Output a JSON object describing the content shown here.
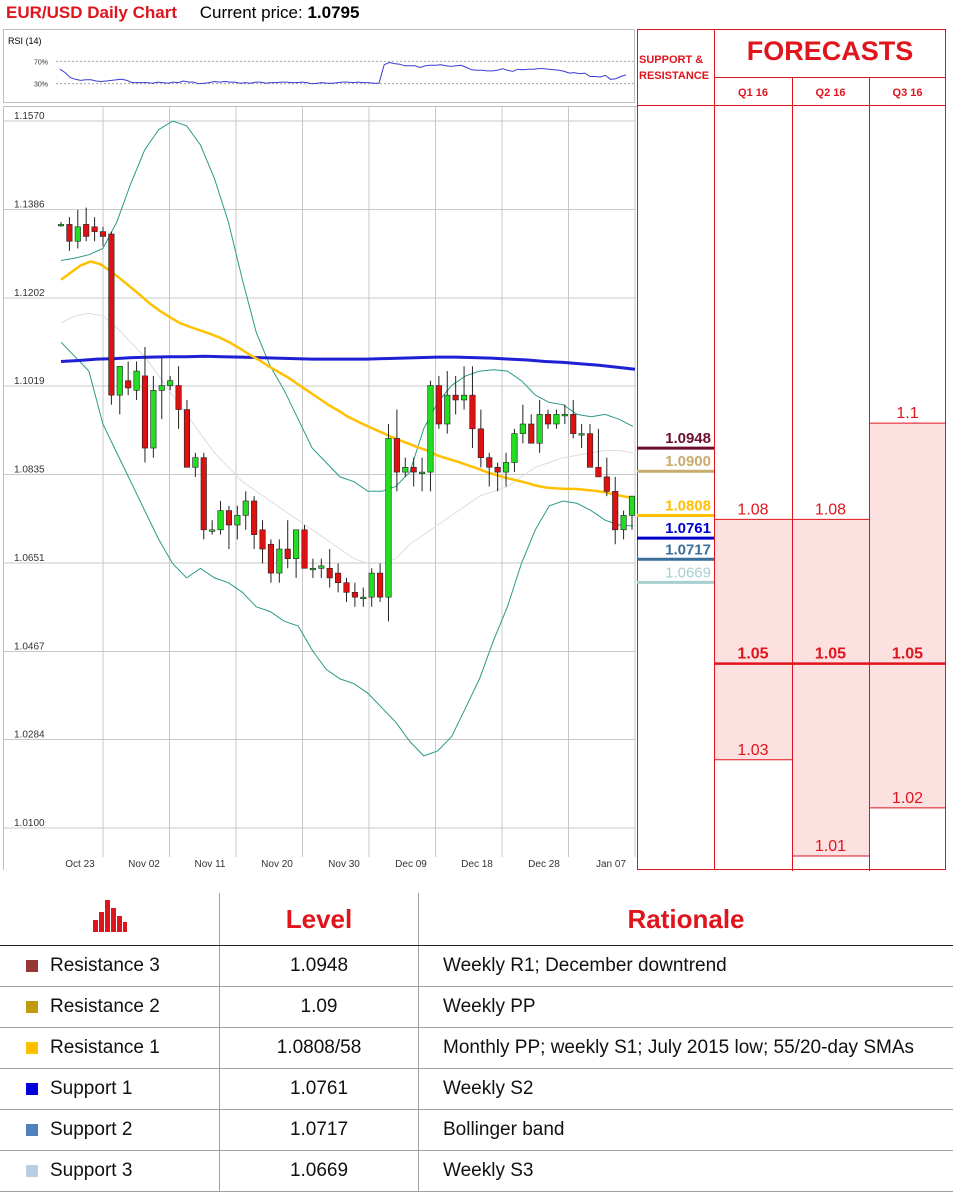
{
  "header": {
    "title": "EUR/USD Daily Chart",
    "price_label": "Current price:",
    "price_value": "1.0795"
  },
  "colors": {
    "accent_red": "#e0141d",
    "bull": "#22dd22",
    "bear": "#dd1111",
    "sma55": "#ffc000",
    "sma200": "#1f1fd6",
    "bollinger": "#2a9a8a",
    "sma20": "#dddddd",
    "rsi_line": "#3a3ad6",
    "forecast_fill": "#fde0e0",
    "icon_bars": "#e0141d"
  },
  "chart_data": [
    {
      "type": "line",
      "title": "RSI (14)",
      "y_ticks": [
        "70%",
        "30%"
      ],
      "ylim": [
        0,
        100
      ],
      "series": [
        {
          "values": [
            55,
            49,
            40,
            37,
            35,
            36,
            36,
            34,
            33,
            34,
            35,
            36,
            37,
            35,
            31,
            31,
            31,
            31,
            30,
            32,
            31,
            30,
            32,
            31,
            34,
            32,
            32,
            29,
            30,
            31,
            33,
            32,
            33,
            32,
            32,
            30,
            31,
            30,
            32,
            32,
            30,
            31,
            31,
            32,
            32,
            31,
            31,
            32,
            31,
            29,
            30,
            31,
            30,
            30,
            31,
            32,
            32,
            31,
            32,
            31,
            31,
            30,
            30,
            63,
            67,
            65,
            64,
            61,
            61,
            61,
            58,
            61,
            62,
            62,
            63,
            61,
            60,
            61,
            62,
            58,
            54,
            53,
            53,
            52,
            52,
            53,
            56,
            53,
            51,
            55,
            54,
            55,
            55,
            56,
            56,
            55,
            54,
            53,
            51,
            48,
            49,
            47,
            48,
            42,
            42,
            41,
            44,
            37,
            38,
            42,
            45
          ]
        }
      ]
    },
    {
      "type": "candlestick",
      "x_ticks": [
        "Oct 23",
        "Nov 02",
        "Nov 11",
        "Nov 20",
        "Nov 30",
        "Dec 09",
        "Dec 18",
        "Dec 28",
        "Jan 07"
      ],
      "y_ticks": [
        "1.1570",
        "1.1386",
        "1.1202",
        "1.1019",
        "1.0835",
        "1.0651",
        "1.0467",
        "1.0284",
        "1.0100"
      ],
      "ylim": [
        1.01,
        1.157
      ],
      "candles": [
        [
          1.1355,
          1.136,
          1.135,
          1.1355
        ],
        [
          1.1355,
          1.137,
          1.13,
          1.132
        ],
        [
          1.132,
          1.1385,
          1.1305,
          1.135
        ],
        [
          1.1355,
          1.139,
          1.132,
          1.133
        ],
        [
          1.135,
          1.137,
          1.132,
          1.134
        ],
        [
          1.134,
          1.135,
          1.131,
          1.133
        ],
        [
          1.1335,
          1.134,
          1.098,
          1.1
        ],
        [
          1.1,
          1.106,
          1.096,
          1.106
        ],
        [
          1.103,
          1.107,
          1.1,
          1.1015
        ],
        [
          1.101,
          1.107,
          1.099,
          1.105
        ],
        [
          1.104,
          1.11,
          1.086,
          1.089
        ],
        [
          1.089,
          1.104,
          1.087,
          1.101
        ],
        [
          1.101,
          1.108,
          1.095,
          1.102
        ],
        [
          1.102,
          1.104,
          1.101,
          1.103
        ],
        [
          1.102,
          1.106,
          1.093,
          1.097
        ],
        [
          1.097,
          1.099,
          1.085,
          1.085
        ],
        [
          1.085,
          1.088,
          1.083,
          1.087
        ],
        [
          1.087,
          1.088,
          1.07,
          1.072
        ],
        [
          1.072,
          1.074,
          1.071,
          1.072
        ],
        [
          1.072,
          1.078,
          1.071,
          1.076
        ],
        [
          1.076,
          1.077,
          1.068,
          1.073
        ],
        [
          1.073,
          1.077,
          1.07,
          1.075
        ],
        [
          1.075,
          1.08,
          1.072,
          1.078
        ],
        [
          1.078,
          1.079,
          1.068,
          1.071
        ],
        [
          1.072,
          1.074,
          1.065,
          1.068
        ],
        [
          1.069,
          1.07,
          1.061,
          1.063
        ],
        [
          1.063,
          1.07,
          1.061,
          1.068
        ],
        [
          1.068,
          1.074,
          1.064,
          1.066
        ],
        [
          1.066,
          1.072,
          1.062,
          1.072
        ],
        [
          1.072,
          1.073,
          1.064,
          1.064
        ],
        [
          1.064,
          1.066,
          1.062,
          1.064
        ],
        [
          1.064,
          1.066,
          1.062,
          1.0645
        ],
        [
          1.064,
          1.068,
          1.06,
          1.062
        ],
        [
          1.063,
          1.065,
          1.059,
          1.061
        ],
        [
          1.061,
          1.062,
          1.057,
          1.059
        ],
        [
          1.059,
          1.061,
          1.056,
          1.058
        ],
        [
          1.058,
          1.06,
          1.056,
          1.058
        ],
        [
          1.058,
          1.064,
          1.056,
          1.063
        ],
        [
          1.063,
          1.065,
          1.057,
          1.058
        ],
        [
          1.058,
          1.094,
          1.053,
          1.091
        ],
        [
          1.091,
          1.097,
          1.08,
          1.084
        ],
        [
          1.084,
          1.087,
          1.083,
          1.085
        ],
        [
          1.085,
          1.087,
          1.081,
          1.084
        ],
        [
          1.084,
          1.087,
          1.08,
          1.084
        ],
        [
          1.084,
          1.103,
          1.08,
          1.102
        ],
        [
          1.102,
          1.104,
          1.093,
          1.094
        ],
        [
          1.094,
          1.105,
          1.092,
          1.1
        ],
        [
          1.1,
          1.104,
          1.096,
          1.099
        ],
        [
          1.099,
          1.106,
          1.097,
          1.1
        ],
        [
          1.1,
          1.106,
          1.089,
          1.093
        ],
        [
          1.093,
          1.097,
          1.085,
          1.087
        ],
        [
          1.087,
          1.088,
          1.081,
          1.085
        ],
        [
          1.085,
          1.086,
          1.08,
          1.084
        ],
        [
          1.084,
          1.088,
          1.081,
          1.086
        ],
        [
          1.086,
          1.093,
          1.084,
          1.092
        ],
        [
          1.092,
          1.098,
          1.09,
          1.094
        ],
        [
          1.094,
          1.096,
          1.09,
          1.09
        ],
        [
          1.09,
          1.099,
          1.088,
          1.096
        ],
        [
          1.096,
          1.097,
          1.093,
          1.094
        ],
        [
          1.094,
          1.097,
          1.093,
          1.096
        ],
        [
          1.096,
          1.098,
          1.094,
          1.096
        ],
        [
          1.096,
          1.099,
          1.091,
          1.092
        ],
        [
          1.092,
          1.094,
          1.089,
          1.092
        ],
        [
          1.092,
          1.094,
          1.085,
          1.085
        ],
        [
          1.085,
          1.093,
          1.083,
          1.083
        ],
        [
          1.083,
          1.087,
          1.079,
          1.08
        ],
        [
          1.08,
          1.083,
          1.069,
          1.072
        ],
        [
          1.072,
          1.076,
          1.07,
          1.075
        ],
        [
          1.075,
          1.079,
          1.072,
          1.079
        ]
      ],
      "sma55": [
        1.124,
        1.1255,
        1.127,
        1.1278,
        1.1272,
        1.1258,
        1.1242,
        1.1225,
        1.1208,
        1.119,
        1.1175,
        1.1162,
        1.115,
        1.1142,
        1.1135,
        1.1128,
        1.112,
        1.111,
        1.1098,
        1.1085,
        1.1073,
        1.106,
        1.1048,
        1.1036,
        1.1022,
        1.1008,
        1.0994,
        1.098,
        1.0968,
        1.0955,
        1.0945,
        1.0935,
        1.0926,
        1.0917,
        1.0908,
        1.09,
        1.0892,
        1.0885,
        1.0875,
        1.0868,
        1.0862,
        1.0855,
        1.0848,
        1.084,
        1.0834,
        1.0828,
        1.0823,
        1.0818,
        1.0812,
        1.0808,
        1.0806,
        1.0805,
        1.0805,
        1.0803,
        1.0801,
        1.0798,
        1.0793,
        1.0789,
        1.0786
      ],
      "sma200": [
        1.107,
        1.1072,
        1.1075,
        1.1076,
        1.1078,
        1.1079,
        1.108,
        1.108,
        1.1081,
        1.108,
        1.1079,
        1.1078,
        1.1077,
        1.1076,
        1.1075,
        1.1075,
        1.1075,
        1.1075,
        1.1076,
        1.1077,
        1.1078,
        1.1079,
        1.1079,
        1.1078,
        1.1077,
        1.1075,
        1.1073,
        1.107,
        1.1068,
        1.1065,
        1.1062,
        1.1058,
        1.1054
      ],
      "boll_upper": [
        1.128,
        1.1285,
        1.1292,
        1.1305,
        1.136,
        1.144,
        1.151,
        1.1552,
        1.157,
        1.156,
        1.152,
        1.145,
        1.136,
        1.124,
        1.113,
        1.106,
        1.101,
        1.095,
        1.089,
        1.086,
        1.083,
        1.082,
        1.08,
        1.08,
        1.081,
        1.084,
        1.093,
        1.0985,
        1.102,
        1.104,
        1.105,
        1.1053,
        1.105,
        1.103,
        1.1,
        1.0985,
        1.098,
        1.096,
        1.0955,
        1.096,
        1.095,
        1.0935
      ],
      "boll_lower": [
        1.111,
        1.108,
        1.105,
        1.094,
        1.088,
        1.082,
        1.076,
        1.07,
        1.065,
        1.062,
        1.064,
        1.062,
        1.061,
        1.059,
        1.056,
        1.055,
        1.053,
        1.052,
        1.047,
        1.043,
        1.041,
        1.04,
        1.038,
        1.035,
        1.032,
        1.028,
        1.025,
        1.026,
        1.029,
        1.035,
        1.041,
        1.049,
        1.056,
        1.065,
        1.072,
        1.077,
        1.078,
        1.0775,
        1.076,
        1.074,
        1.073,
        1.0728
      ],
      "sma20": [
        1.115,
        1.1165,
        1.117,
        1.1165,
        1.114,
        1.111,
        1.108,
        1.104,
        1.1,
        1.096,
        1.092,
        1.088,
        1.085,
        1.082,
        1.08,
        1.078,
        1.076,
        1.074,
        1.072,
        1.07,
        1.068,
        1.066,
        1.065,
        1.065,
        1.066,
        1.069,
        1.071,
        1.073,
        1.075,
        1.077,
        1.079,
        1.08,
        1.081,
        1.083,
        1.085,
        1.086,
        1.087,
        1.0875,
        1.088,
        1.0885,
        1.0885,
        1.088
      ]
    },
    {
      "type": "table",
      "title": "FORECASTS",
      "categories": [
        "Q1 16",
        "Q2 16",
        "Q3 16"
      ],
      "series": [
        {
          "name": "Q1 16",
          "values": [
            1.08,
            1.05,
            1.03
          ]
        },
        {
          "name": "Q2 16",
          "values": [
            1.08,
            1.05,
            1.01
          ]
        },
        {
          "name": "Q3 16",
          "values": [
            1.1,
            1.05,
            1.02
          ]
        }
      ],
      "labels": [
        [
          "1.08",
          "1.05",
          "1.03"
        ],
        [
          "1.08",
          "1.05",
          "1.01"
        ],
        [
          "1.1",
          "1.05",
          "1.02"
        ]
      ]
    }
  ],
  "support_resistance": {
    "heading": "SUPPORT &\nRESISTANCE",
    "levels": [
      {
        "label": "1.0948",
        "value": 1.0948,
        "color": "#6b0f2a",
        "bold": true
      },
      {
        "label": "1.0900",
        "value": 1.09,
        "color": "#c9ab6e",
        "bold": true
      },
      {
        "label": "1.0808",
        "value": 1.0808,
        "color": "#ffc000",
        "bold": true
      },
      {
        "label": "1.0761",
        "value": 1.0761,
        "color": "#0000cc",
        "bold": true
      },
      {
        "label": "1.0717",
        "value": 1.0717,
        "color": "#3a6f9a",
        "bold": true
      },
      {
        "label": "1.0669",
        "value": 1.0669,
        "color": "#a8cfd0",
        "bold": false
      }
    ]
  },
  "table": {
    "headers": {
      "level": "Level",
      "rationale": "Rationale"
    },
    "rows": [
      {
        "name": "Resistance 3",
        "level": "1.0948",
        "rationale": "Weekly R1; December downtrend",
        "swatch": "#953735"
      },
      {
        "name": "Resistance 2",
        "level": "1.09",
        "rationale": "Weekly PP",
        "swatch": "#c09a10"
      },
      {
        "name": "Resistance 1",
        "level": "1.0808/58",
        "rationale": "Monthly PP; weekly S1; July 2015 low; 55/20-day SMAs",
        "swatch": "#ffc000"
      },
      {
        "name": "Support 1",
        "level": "1.0761",
        "rationale": "Weekly S2",
        "swatch": "#0000dd"
      },
      {
        "name": "Support 2",
        "level": "1.0717",
        "rationale": "Bollinger band",
        "swatch": "#4f81bd"
      },
      {
        "name": "Support 3",
        "level": "1.0669",
        "rationale": "Weekly S3",
        "swatch": "#b9cde5"
      }
    ]
  }
}
